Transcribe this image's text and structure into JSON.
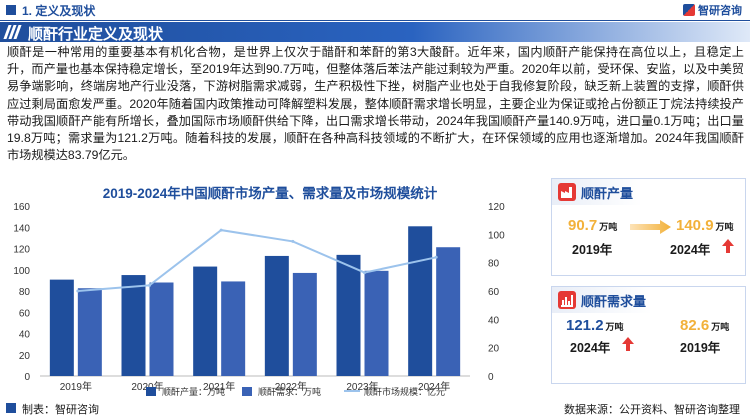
{
  "header": {
    "section_label": "1. 定义及现状",
    "logo_text": "智研咨询"
  },
  "title": "顺酐行业定义及现状",
  "paragraph": "顺酐是一种常用的重要基本有机化合物，是世界上仅次于醋酐和苯酐的第3大酸酐。近年来，国内顺酐产能保持在高位以上，且稳定上升，而产量也基本保持稳定增长，至2019年达到90.7万吨，但整体落后苯法产能过剩较为严重。2020年以前，受环保、安监，以及中美贸易争端影响，终端房地产行业没落，下游树脂需求减弱，生产积极性下挫，树脂产业也处于自我修复阶段，缺乏新上装置的支撑，顺酐供应过剩局面愈发严重。2020年随着国内政策推动可降解塑料发展，整体顺酐需求增长明显，主要企业为保证或抢占份额正丁烷法持续投产带动我国顺酐产能有所增长，叠加国际市场顺酐供给下降，出口需求增长带动，2024年我国顺酐产量140.9万吨，进口量0.1万吨；出口量19.8万吨；需求量为121.2万吨。随着科技的发展，顺酐在各种高科技领域的不断扩大，在环保领域的应用也逐渐增加。2024年我国顺酐市场规模达83.79亿元。",
  "chart_data": {
    "type": "bar",
    "title": "2019-2024年中国顺酐市场产量、需求量及市场规模统计",
    "categories": [
      "2019年",
      "2020年",
      "2021年",
      "2022年",
      "2023年",
      "2024年"
    ],
    "series": [
      {
        "name": "顺酐产量：万吨",
        "type": "bar",
        "axis": "left",
        "values": [
          90.7,
          95,
          103,
          113,
          114,
          140.9
        ],
        "color": "#1f4e9c"
      },
      {
        "name": "顺酐需求：万吨",
        "type": "bar",
        "axis": "left",
        "values": [
          82.6,
          88,
          89,
          97,
          99,
          121.2
        ],
        "color": "#3a62b5"
      },
      {
        "name": "顺酐市场规模：亿元",
        "type": "line",
        "axis": "right",
        "values": [
          60,
          64,
          103,
          95,
          73,
          83.79
        ],
        "color": "#9cc3ec"
      }
    ],
    "y_left": {
      "min": 0,
      "max": 160,
      "ticks": [
        0,
        20,
        40,
        60,
        80,
        100,
        120,
        140,
        160
      ]
    },
    "y_right": {
      "min": 0,
      "max": 120,
      "ticks": [
        0,
        20,
        40,
        60,
        80,
        100,
        120
      ]
    },
    "grid": false,
    "legend_position": "bottom"
  },
  "cards": {
    "production": {
      "label": "顺酐产量",
      "left_value": "90.7",
      "left_unit": "万吨",
      "left_year": "2019年",
      "right_value": "140.9",
      "right_unit": "万吨",
      "right_year": "2024年",
      "trend": "up"
    },
    "demand": {
      "label": "顺酐需求量",
      "left_value": "121.2",
      "left_unit": "万吨",
      "left_year": "2024年",
      "right_value": "82.6",
      "right_unit": "万吨",
      "right_year": "2019年",
      "trend": "up"
    }
  },
  "footer": {
    "left": "制表：智研咨询",
    "right": "数据来源：公开资料、智研咨询整理"
  },
  "colors": {
    "brand_blue": "#1f4e9c",
    "accent_orange": "#f2b13a",
    "accent_red": "#e53935"
  }
}
